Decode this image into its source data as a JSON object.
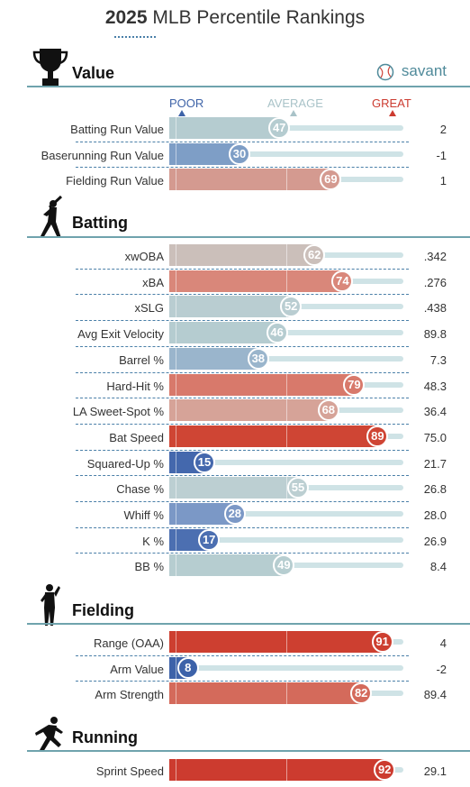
{
  "header": {
    "year": "2025",
    "title": "MLB Percentile Rankings",
    "brand": "savant"
  },
  "legend": {
    "poor": "POOR",
    "average": "AVERAGE",
    "great": "GREAT",
    "poor_color": "#3e63a8",
    "average_color": "#a9c3c8",
    "great_color": "#cc3b30"
  },
  "icons": {
    "value": "trophy-icon",
    "batting": "batter-silhouette-icon",
    "fielding": "fielder-silhouette-icon",
    "running": "runner-silhouette-icon",
    "brand": "baseball-icon"
  },
  "chart_data": {
    "type": "bar",
    "scale": [
      0,
      100
    ],
    "sections": [
      {
        "name": "Value",
        "rows": [
          {
            "label": "Batting Run Value",
            "percentile": 47,
            "value": "2",
            "color": "#b5ccd0"
          },
          {
            "label": "Baserunning Run Value",
            "percentile": 30,
            "value": "-1",
            "color": "#7e9ec6"
          },
          {
            "label": "Fielding Run Value",
            "percentile": 69,
            "value": "1",
            "color": "#d49a90"
          }
        ]
      },
      {
        "name": "Batting",
        "rows": [
          {
            "label": "xwOBA",
            "percentile": 62,
            "value": ".342",
            "color": "#cbbfba"
          },
          {
            "label": "xBA",
            "percentile": 74,
            "value": ".276",
            "color": "#d9877a"
          },
          {
            "label": "xSLG",
            "percentile": 52,
            "value": ".438",
            "color": "#b9cdd1"
          },
          {
            "label": "Avg Exit Velocity",
            "percentile": 46,
            "value": "89.8",
            "color": "#b5ccd0"
          },
          {
            "label": "Barrel %",
            "percentile": 38,
            "value": "7.3",
            "color": "#9ab5cc"
          },
          {
            "label": "Hard-Hit %",
            "percentile": 79,
            "value": "48.3",
            "color": "#d8796b"
          },
          {
            "label": "LA Sweet-Spot %",
            "percentile": 68,
            "value": "36.4",
            "color": "#d6a398"
          },
          {
            "label": "Bat Speed",
            "percentile": 89,
            "value": "75.0",
            "color": "#cf4534"
          },
          {
            "label": "Squared-Up %",
            "percentile": 15,
            "value": "21.7",
            "color": "#4468ad"
          },
          {
            "label": "Chase %",
            "percentile": 55,
            "value": "26.8",
            "color": "#bccfd2"
          },
          {
            "label": "Whiff %",
            "percentile": 28,
            "value": "28.0",
            "color": "#7b98c6"
          },
          {
            "label": "K %",
            "percentile": 17,
            "value": "26.9",
            "color": "#4c6fb1"
          },
          {
            "label": "BB %",
            "percentile": 49,
            "value": "8.4",
            "color": "#b6cdd0"
          }
        ]
      },
      {
        "name": "Fielding",
        "rows": [
          {
            "label": "Range (OAA)",
            "percentile": 91,
            "value": "4",
            "color": "#cd3f30"
          },
          {
            "label": "Arm Value",
            "percentile": 8,
            "value": "-2",
            "color": "#3d62a9"
          },
          {
            "label": "Arm Strength",
            "percentile": 82,
            "value": "89.4",
            "color": "#d46a5b"
          }
        ]
      },
      {
        "name": "Running",
        "rows": [
          {
            "label": "Sprint Speed",
            "percentile": 92,
            "value": "29.1",
            "color": "#cc3b2f"
          }
        ]
      }
    ]
  }
}
